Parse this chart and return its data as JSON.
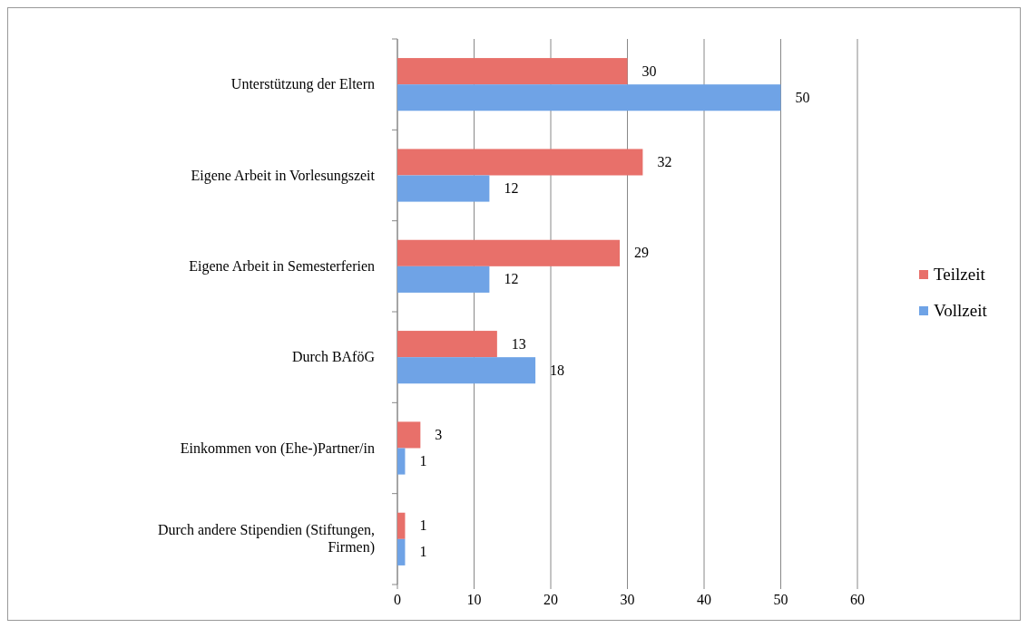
{
  "chart_data": {
    "type": "bar",
    "orientation": "horizontal",
    "categories": [
      "Unterstützung der Eltern",
      "Eigene Arbeit in Vorlesungszeit",
      "Eigene Arbeit in Semesterferien",
      "Durch BAföG",
      "Einkommen von (Ehe-)Partner/in",
      "Durch andere Stipendien (Stiftungen, Firmen)"
    ],
    "series": [
      {
        "name": "Teilzeit",
        "color": "#e8706a",
        "values": [
          30,
          32,
          29,
          13,
          3,
          1
        ]
      },
      {
        "name": "Vollzeit",
        "color": "#6fa3e6",
        "values": [
          50,
          12,
          12,
          18,
          1,
          1
        ]
      }
    ],
    "xlim": [
      0,
      60
    ],
    "xticks": [
      0,
      10,
      20,
      30,
      40,
      50,
      60
    ],
    "grid": "x",
    "legend": "right",
    "data_labels": true
  }
}
